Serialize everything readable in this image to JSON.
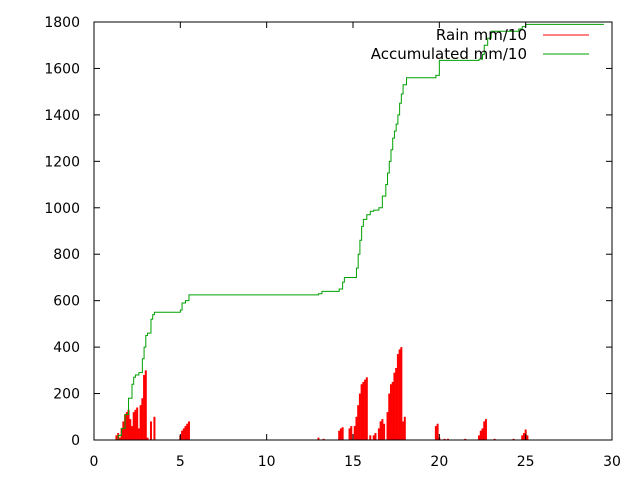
{
  "chart_data": {
    "type": "line",
    "title": "",
    "xlabel": "",
    "ylabel": "",
    "xlim": [
      0,
      30
    ],
    "ylim": [
      0,
      1800
    ],
    "xticks": [
      0,
      5,
      10,
      15,
      20,
      25,
      30
    ],
    "yticks": [
      0,
      200,
      400,
      600,
      800,
      1000,
      1200,
      1400,
      1600,
      1800
    ],
    "grid": false,
    "legend_position": "top-right",
    "series": [
      {
        "name": "Rain mm/10",
        "style": "impulses",
        "color": "#ff0000",
        "points": [
          [
            1.3,
            20
          ],
          [
            1.4,
            30
          ],
          [
            1.5,
            10
          ],
          [
            1.6,
            50
          ],
          [
            1.7,
            80
          ],
          [
            1.8,
            110
          ],
          [
            1.9,
            120
          ],
          [
            2.0,
            130
          ],
          [
            2.1,
            90
          ],
          [
            2.2,
            60
          ],
          [
            2.3,
            120
          ],
          [
            2.4,
            130
          ],
          [
            2.5,
            140
          ],
          [
            2.6,
            50
          ],
          [
            2.7,
            150
          ],
          [
            2.8,
            180
          ],
          [
            2.9,
            280
          ],
          [
            3.0,
            300
          ],
          [
            3.1,
            10
          ],
          [
            3.3,
            80
          ],
          [
            3.5,
            100
          ],
          [
            5.0,
            20
          ],
          [
            5.1,
            40
          ],
          [
            5.2,
            50
          ],
          [
            5.3,
            60
          ],
          [
            5.4,
            70
          ],
          [
            5.5,
            80
          ],
          [
            13.0,
            10
          ],
          [
            13.3,
            5
          ],
          [
            14.2,
            40
          ],
          [
            14.3,
            50
          ],
          [
            14.4,
            55
          ],
          [
            14.8,
            50
          ],
          [
            14.9,
            60
          ],
          [
            15.1,
            60
          ],
          [
            15.2,
            100
          ],
          [
            15.3,
            150
          ],
          [
            15.4,
            200
          ],
          [
            15.5,
            240
          ],
          [
            15.6,
            250
          ],
          [
            15.7,
            260
          ],
          [
            15.8,
            270
          ],
          [
            16.0,
            20
          ],
          [
            16.2,
            20
          ],
          [
            16.3,
            30
          ],
          [
            16.5,
            50
          ],
          [
            16.6,
            80
          ],
          [
            16.7,
            90
          ],
          [
            16.8,
            70
          ],
          [
            17.0,
            120
          ],
          [
            17.1,
            200
          ],
          [
            17.2,
            240
          ],
          [
            17.3,
            250
          ],
          [
            17.4,
            290
          ],
          [
            17.5,
            310
          ],
          [
            17.6,
            370
          ],
          [
            17.7,
            390
          ],
          [
            17.8,
            400
          ],
          [
            17.9,
            80
          ],
          [
            18.0,
            100
          ],
          [
            19.8,
            60
          ],
          [
            19.9,
            70
          ],
          [
            20.0,
            10
          ],
          [
            20.3,
            5
          ],
          [
            20.5,
            5
          ],
          [
            21.5,
            5
          ],
          [
            22.3,
            20
          ],
          [
            22.4,
            40
          ],
          [
            22.5,
            50
          ],
          [
            22.6,
            80
          ],
          [
            22.7,
            90
          ],
          [
            23.2,
            5
          ],
          [
            24.3,
            5
          ],
          [
            24.8,
            20
          ],
          [
            24.9,
            30
          ],
          [
            25.0,
            45
          ],
          [
            25.1,
            20
          ],
          [
            29.5,
            2
          ]
        ]
      },
      {
        "name": "Accumulated mm/10",
        "style": "steps",
        "color": "#00a000",
        "points": [
          [
            1.2,
            0
          ],
          [
            1.4,
            20
          ],
          [
            1.6,
            50
          ],
          [
            1.8,
            110
          ],
          [
            2.0,
            180
          ],
          [
            2.2,
            240
          ],
          [
            2.3,
            270
          ],
          [
            2.4,
            280
          ],
          [
            2.6,
            290
          ],
          [
            2.8,
            350
          ],
          [
            2.9,
            400
          ],
          [
            3.0,
            450
          ],
          [
            3.1,
            460
          ],
          [
            3.3,
            520
          ],
          [
            3.4,
            540
          ],
          [
            3.5,
            550
          ],
          [
            5.0,
            560
          ],
          [
            5.1,
            590
          ],
          [
            5.3,
            600
          ],
          [
            5.5,
            625
          ],
          [
            13.0,
            630
          ],
          [
            13.2,
            640
          ],
          [
            14.2,
            650
          ],
          [
            14.4,
            680
          ],
          [
            14.5,
            700
          ],
          [
            15.0,
            700
          ],
          [
            15.2,
            740
          ],
          [
            15.3,
            800
          ],
          [
            15.4,
            860
          ],
          [
            15.5,
            920
          ],
          [
            15.6,
            950
          ],
          [
            15.8,
            970
          ],
          [
            16.0,
            985
          ],
          [
            16.2,
            990
          ],
          [
            16.5,
            1000
          ],
          [
            16.7,
            1050
          ],
          [
            16.9,
            1100
          ],
          [
            17.0,
            1150
          ],
          [
            17.1,
            1200
          ],
          [
            17.2,
            1250
          ],
          [
            17.3,
            1300
          ],
          [
            17.4,
            1330
          ],
          [
            17.5,
            1360
          ],
          [
            17.6,
            1400
          ],
          [
            17.7,
            1450
          ],
          [
            17.8,
            1490
          ],
          [
            17.9,
            1530
          ],
          [
            18.1,
            1560
          ],
          [
            19.8,
            1570
          ],
          [
            20.0,
            1635
          ],
          [
            22.3,
            1640
          ],
          [
            22.5,
            1660
          ],
          [
            22.6,
            1700
          ],
          [
            22.8,
            1730
          ],
          [
            23.0,
            1760
          ],
          [
            24.6,
            1770
          ],
          [
            24.8,
            1780
          ],
          [
            25.0,
            1790
          ],
          [
            29.5,
            1792
          ]
        ]
      }
    ]
  }
}
